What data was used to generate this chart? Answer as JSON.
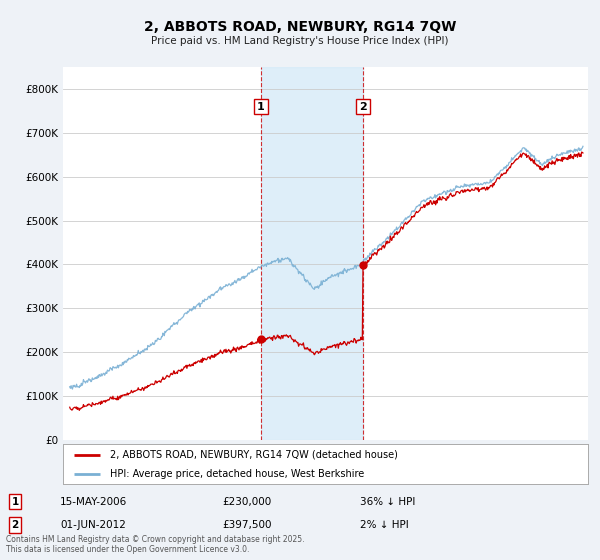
{
  "title": "2, ABBOTS ROAD, NEWBURY, RG14 7QW",
  "subtitle": "Price paid vs. HM Land Registry's House Price Index (HPI)",
  "background_color": "#eef2f7",
  "plot_bg_color": "#ffffff",
  "red_line_color": "#cc0000",
  "blue_line_color": "#7ab0d4",
  "span_color": "#d6eaf8",
  "sale1_date": "15-MAY-2006",
  "sale1_price": 230000,
  "sale1_hpi_text": "36% ↓ HPI",
  "sale2_date": "01-JUN-2012",
  "sale2_price": 397500,
  "sale2_hpi_text": "2% ↓ HPI",
  "legend_line1": "2, ABBOTS ROAD, NEWBURY, RG14 7QW (detached house)",
  "legend_line2": "HPI: Average price, detached house, West Berkshire",
  "footer": "Contains HM Land Registry data © Crown copyright and database right 2025.\nThis data is licensed under the Open Government Licence v3.0.",
  "ylim": [
    0,
    850000
  ],
  "yticks": [
    0,
    100000,
    200000,
    300000,
    400000,
    500000,
    600000,
    700000,
    800000
  ],
  "sale1_year": 2006.37,
  "sale2_year": 2012.42,
  "sale1_price_val": 230000,
  "sale2_price_val": 397500
}
